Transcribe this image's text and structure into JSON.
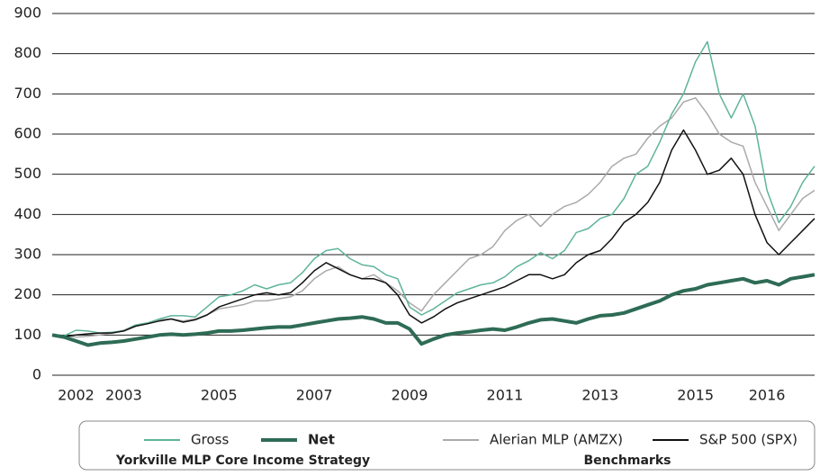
{
  "chart_data": {
    "type": "line",
    "categories": [
      null,
      null,
      "2002",
      null,
      null,
      null,
      "2003",
      null,
      null,
      null,
      null,
      null,
      null,
      null,
      "2005",
      null,
      null,
      null,
      null,
      null,
      null,
      null,
      "2007",
      null,
      null,
      null,
      null,
      null,
      null,
      null,
      "2009",
      null,
      null,
      null,
      null,
      null,
      null,
      null,
      "2011",
      null,
      null,
      null,
      null,
      null,
      null,
      null,
      "2013",
      null,
      null,
      null,
      null,
      null,
      null,
      null,
      "2015",
      null,
      null,
      null,
      null,
      null,
      "2016",
      null,
      null,
      null,
      null
    ],
    "series": [
      {
        "name": "Gross",
        "color": "#5fb49c",
        "values": [
          100,
          98,
          112,
          110,
          105,
          107,
          110,
          125,
          130,
          140,
          148,
          148,
          145,
          170,
          195,
          200,
          210,
          225,
          215,
          225,
          230,
          255,
          290,
          310,
          315,
          290,
          275,
          270,
          250,
          240,
          170,
          150,
          165,
          185,
          205,
          215,
          225,
          230,
          245,
          270,
          285,
          305,
          290,
          310,
          355,
          365,
          390,
          400,
          440,
          500,
          520,
          580,
          650,
          700,
          780,
          830,
          700,
          640,
          700,
          620,
          460,
          380,
          420,
          480,
          520
        ]
      },
      {
        "name": "Net",
        "color": "#2e6b55",
        "values": [
          100,
          95,
          85,
          75,
          80,
          82,
          85,
          90,
          95,
          100,
          102,
          100,
          102,
          105,
          110,
          110,
          112,
          115,
          118,
          120,
          120,
          125,
          130,
          135,
          140,
          142,
          145,
          140,
          130,
          130,
          115,
          78,
          90,
          100,
          105,
          108,
          112,
          115,
          112,
          120,
          130,
          138,
          140,
          135,
          130,
          140,
          148,
          150,
          155,
          165,
          175,
          185,
          200,
          210,
          215,
          225,
          230,
          235,
          240,
          230,
          235,
          225,
          240,
          245,
          250
        ]
      },
      {
        "name": "Alerian MLP (AMZX)",
        "color": "#aaaaaa",
        "values": [
          100,
          98,
          95,
          97,
          100,
          105,
          112,
          125,
          130,
          138,
          140,
          135,
          140,
          150,
          165,
          170,
          175,
          185,
          185,
          190,
          195,
          210,
          240,
          260,
          270,
          250,
          240,
          250,
          230,
          210,
          180,
          160,
          200,
          230,
          260,
          290,
          300,
          320,
          360,
          385,
          400,
          370,
          400,
          420,
          430,
          450,
          480,
          520,
          540,
          550,
          590,
          620,
          640,
          680,
          690,
          650,
          600,
          580,
          570,
          480,
          420,
          360,
          400,
          440,
          460
        ]
      },
      {
        "name": "S&P 500 (SPX)",
        "color": "#111111",
        "values": [
          100,
          96,
          100,
          103,
          105,
          105,
          110,
          122,
          128,
          135,
          140,
          132,
          138,
          150,
          170,
          180,
          190,
          200,
          205,
          200,
          205,
          230,
          260,
          280,
          265,
          250,
          240,
          240,
          230,
          200,
          150,
          130,
          145,
          165,
          180,
          190,
          200,
          210,
          220,
          235,
          250,
          250,
          240,
          250,
          280,
          300,
          310,
          340,
          380,
          400,
          430,
          480,
          560,
          610,
          560,
          500,
          510,
          540,
          500,
          400,
          330,
          300,
          330,
          360,
          390
        ]
      }
    ],
    "legend_groups": [
      "Yorkville MLP Core Income Strategy",
      "Benchmarks"
    ],
    "ylim": [
      0,
      900
    ],
    "yticks": [
      0,
      100,
      200,
      300,
      400,
      500,
      600,
      700,
      800,
      900
    ],
    "grid": true
  }
}
